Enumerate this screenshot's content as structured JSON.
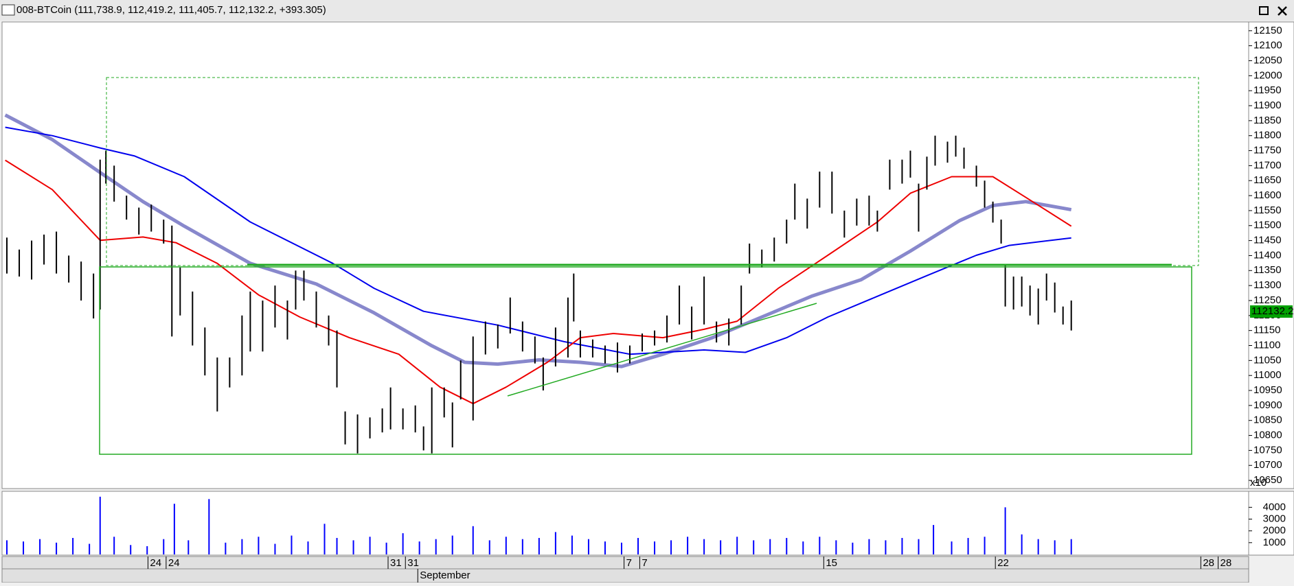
{
  "chart_data": [
    {
      "type": "ohlc",
      "title": "008-BTCoin (111,738.9, 112,419.2, 111,405.7, 112,132.2, +393.305)",
      "x": [
        5,
        20,
        35,
        50,
        65,
        80,
        95,
        110,
        118,
        125,
        135,
        150,
        165,
        180,
        195,
        205,
        215,
        230,
        245,
        260,
        275,
        290,
        300,
        315,
        330,
        345,
        355,
        365,
        380,
        395,
        405,
        415,
        430,
        445,
        460,
        470,
        485,
        500,
        510,
        520,
        535,
        545,
        555,
        570,
        585,
        600,
        615,
        630,
        645,
        655,
        670,
        685,
        692,
        700,
        715,
        730,
        745,
        760,
        775,
        790,
        805,
        820,
        835,
        850,
        865,
        880,
        895,
        905,
        920,
        935,
        950,
        960,
        975,
        990,
        1005,
        1020,
        1035,
        1050,
        1060,
        1075,
        1090,
        1100,
        1110,
        1120,
        1130,
        1145,
        1155,
        1165,
        1180,
        1190,
        1200,
        1210,
        1215,
        1225,
        1235,
        1245,
        1255,
        1265,
        1275,
        1285,
        1295
      ],
      "high": [
        11460,
        11420,
        11450,
        11470,
        11480,
        11400,
        11380,
        11340,
        11720,
        11750,
        11700,
        11600,
        11560,
        11570,
        11520,
        11500,
        11360,
        11280,
        11160,
        11060,
        11060,
        11200,
        11280,
        11250,
        11300,
        11250,
        11350,
        11350,
        11280,
        11200,
        11150,
        10880,
        10870,
        10860,
        10890,
        10960,
        10890,
        10900,
        10830,
        10960,
        10960,
        10910,
        11050,
        11130,
        11180,
        11170,
        11260,
        11180,
        11130,
        11060,
        11160,
        11260,
        11340,
        11150,
        11120,
        11100,
        11110,
        11100,
        11140,
        11150,
        11200,
        11300,
        11230,
        11330,
        11180,
        11190,
        11300,
        11440,
        11420,
        11460,
        11520,
        11640,
        11590,
        11680,
        11680,
        11550,
        11590,
        11600,
        11550,
        11720,
        11720,
        11750,
        11640,
        11730,
        11800,
        11780,
        11800,
        11760,
        11700,
        11650,
        11580,
        11520,
        11370,
        11330,
        11330,
        11300,
        11290,
        11340,
        11310,
        11230,
        11250
      ],
      "low": [
        11340,
        11330,
        11320,
        11370,
        11340,
        11310,
        11250,
        11190,
        11220,
        11640,
        11580,
        11520,
        11470,
        11480,
        11440,
        11130,
        11200,
        11100,
        11000,
        10880,
        10960,
        11000,
        11080,
        11080,
        11160,
        11120,
        11220,
        11250,
        11160,
        11100,
        10960,
        10770,
        10740,
        10790,
        10810,
        10820,
        10820,
        10810,
        10750,
        10740,
        10860,
        10760,
        10920,
        10850,
        11070,
        11090,
        11140,
        11080,
        11040,
        10950,
        11030,
        11060,
        11180,
        11060,
        11060,
        11040,
        11010,
        11040,
        11080,
        11100,
        11110,
        11170,
        11120,
        11170,
        11110,
        11100,
        11170,
        11340,
        11360,
        11380,
        11440,
        11520,
        11490,
        11560,
        11540,
        11460,
        11500,
        11500,
        11480,
        11620,
        11640,
        11660,
        11480,
        11620,
        11700,
        11710,
        11730,
        11690,
        11630,
        11560,
        11510,
        11440,
        11230,
        11220,
        11230,
        11200,
        11170,
        11250,
        11210,
        11170,
        11150
      ],
      "bar_color": "#000000",
      "series": [
        {
          "color": "#8888cc",
          "width": 5,
          "x": [
            3,
            60,
            118,
            170,
            220,
            300,
            380,
            450,
            520,
            560,
            600,
            650,
            700,
            750,
            800,
            860,
            920,
            980,
            1040,
            1100,
            1160,
            1200,
            1240,
            1295
          ],
          "values": [
            11869,
            11787,
            11677,
            11580,
            11498,
            11374,
            11305,
            11209,
            11099,
            11044,
            11038,
            11052,
            11044,
            11030,
            11071,
            11126,
            11195,
            11264,
            11319,
            11415,
            11517,
            11567,
            11580,
            11553
          ]
        },
        {
          "color": "#0000ee",
          "width": 2,
          "x": [
            3,
            60,
            118,
            160,
            220,
            300,
            400,
            450,
            510,
            600,
            680,
            760,
            850,
            900,
            950,
            1000,
            1060,
            1120,
            1180,
            1220,
            1295
          ],
          "values": [
            11828,
            11800,
            11759,
            11732,
            11663,
            11512,
            11374,
            11291,
            11214,
            11168,
            11113,
            11071,
            11085,
            11077,
            11126,
            11195,
            11264,
            11333,
            11401,
            11434,
            11459
          ]
        },
        {
          "color": "#ee0000",
          "width": 2,
          "x": [
            3,
            60,
            118,
            170,
            210,
            260,
            310,
            360,
            420,
            480,
            530,
            570,
            610,
            660,
            700,
            740,
            800,
            850,
            890,
            940,
            1000,
            1060,
            1100,
            1150,
            1200,
            1240,
            1295
          ],
          "values": [
            11718,
            11620,
            11451,
            11462,
            11443,
            11374,
            11269,
            11195,
            11126,
            11071,
            10961,
            10906,
            10961,
            11044,
            11126,
            11140,
            11126,
            11154,
            11181,
            11291,
            11401,
            11512,
            11608,
            11663,
            11663,
            11594,
            11498
          ]
        }
      ],
      "xlim": [
        0,
        1510
      ],
      "ylim": [
        10625,
        12177
      ],
      "yticks": [
        10650,
        10700,
        10750,
        10800,
        10850,
        10900,
        10950,
        11000,
        11050,
        11100,
        11150,
        11200,
        11250,
        11300,
        11350,
        11400,
        11450,
        11500,
        11550,
        11600,
        11650,
        11700,
        11750,
        11800,
        11850,
        11900,
        11950,
        12000,
        12050,
        12100,
        12150
      ],
      "axis_unit_label": "x10",
      "last_value": 11213.22,
      "last_value_label": "112132.2"
    },
    {
      "type": "bar",
      "x": [
        5,
        25,
        45,
        65,
        85,
        105,
        118,
        135,
        155,
        175,
        195,
        208,
        225,
        250,
        270,
        290,
        310,
        330,
        350,
        370,
        390,
        405,
        425,
        445,
        465,
        485,
        505,
        525,
        545,
        570,
        590,
        610,
        630,
        650,
        670,
        690,
        710,
        730,
        750,
        770,
        790,
        810,
        830,
        850,
        870,
        890,
        910,
        930,
        950,
        970,
        990,
        1010,
        1030,
        1050,
        1070,
        1090,
        1110,
        1128,
        1150,
        1170,
        1190,
        1215,
        1235,
        1255,
        1275,
        1295
      ],
      "values": [
        1200,
        1100,
        1300,
        1000,
        1400,
        900,
        4900,
        1500,
        800,
        700,
        1300,
        4300,
        1200,
        4700,
        1000,
        1300,
        1500,
        900,
        1600,
        1100,
        2600,
        1400,
        1200,
        1500,
        1000,
        1800,
        1100,
        1300,
        1600,
        2400,
        1200,
        1500,
        1300,
        1400,
        1900,
        1600,
        1300,
        1100,
        1000,
        1400,
        1100,
        1200,
        1500,
        1300,
        1200,
        1500,
        1200,
        1300,
        1400,
        1100,
        1500,
        1200,
        1000,
        1300,
        1200,
        1400,
        1300,
        2500,
        1100,
        1400,
        1500,
        4000,
        1700,
        1300,
        1200,
        1300
      ],
      "color": "#0000ff",
      "xlim": [
        0,
        1510
      ],
      "ylim": [
        0,
        5300
      ],
      "yticks": [
        1000,
        2000,
        3000,
        4000
      ],
      "xticks": [
        {
          "value": 176,
          "label": "24"
        },
        {
          "value": 198,
          "label": "24"
        },
        {
          "value": 467,
          "label": "31"
        },
        {
          "value": 488,
          "label": "31"
        },
        {
          "value": 753,
          "label": "7"
        },
        {
          "value": 772,
          "label": "7"
        },
        {
          "value": 995,
          "label": "15"
        },
        {
          "value": 1203,
          "label": "22"
        },
        {
          "value": 1452,
          "label": "28"
        },
        {
          "value": 1473,
          "label": "28"
        }
      ],
      "month_ticks": [
        {
          "value": 503,
          "label": "September"
        }
      ]
    }
  ]
}
